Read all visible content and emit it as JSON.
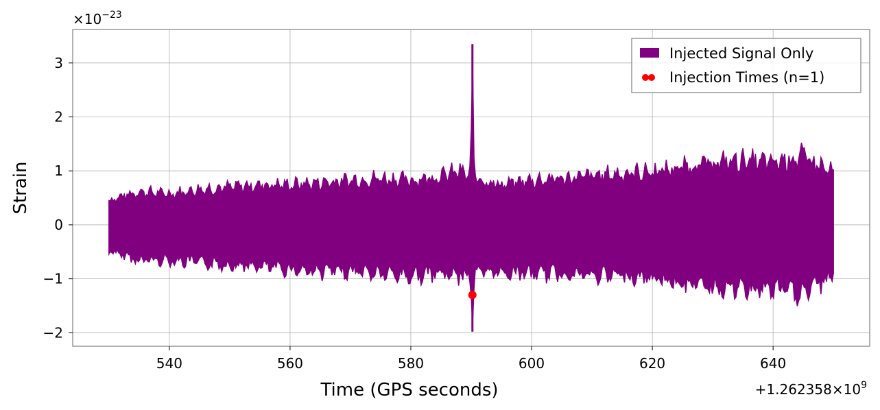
{
  "chart_data": {
    "type": "line",
    "xlabel": "Time (GPS seconds)",
    "ylabel": "Strain",
    "x_offset_label": "+1.262358×10",
    "x_offset_exp": "9",
    "y_scale_label": "×10",
    "y_scale_exp": "−23",
    "xlim": [
      524,
      656
    ],
    "ylim": [
      -2.25,
      3.62
    ],
    "x_ticks": [
      540,
      560,
      580,
      600,
      620,
      640
    ],
    "x_tick_labels": [
      "540",
      "560",
      "580",
      "600",
      "620",
      "640"
    ],
    "y_ticks": [
      -2,
      -1,
      0,
      1,
      2,
      3
    ],
    "y_tick_labels": [
      "−2",
      "−1",
      "0",
      "1",
      "2",
      "3"
    ],
    "grid": true,
    "legend_position": "top-right",
    "series": [
      {
        "name": "Injected Signal Only",
        "color": "#800080",
        "kind": "band",
        "x_range": [
          530,
          650
        ],
        "envelope": [
          {
            "x": 530,
            "upper": 0.55,
            "lower": -0.6
          },
          {
            "x": 535,
            "upper": 0.75,
            "lower": -0.8
          },
          {
            "x": 540,
            "upper": 0.7,
            "lower": -0.8
          },
          {
            "x": 545,
            "upper": 0.8,
            "lower": -0.85
          },
          {
            "x": 550,
            "upper": 0.85,
            "lower": -0.9
          },
          {
            "x": 555,
            "upper": 0.9,
            "lower": -0.95
          },
          {
            "x": 560,
            "upper": 0.9,
            "lower": -1.0
          },
          {
            "x": 565,
            "upper": 0.95,
            "lower": -1.05
          },
          {
            "x": 570,
            "upper": 1.0,
            "lower": -1.05
          },
          {
            "x": 575,
            "upper": 1.05,
            "lower": -1.1
          },
          {
            "x": 580,
            "upper": 1.0,
            "lower": -1.15
          },
          {
            "x": 585,
            "upper": 1.1,
            "lower": -1.1
          },
          {
            "x": 588,
            "upper": 1.2,
            "lower": -1.15
          },
          {
            "x": 592,
            "upper": 1.0,
            "lower": -1.1
          },
          {
            "x": 595,
            "upper": 0.9,
            "lower": -1.05
          },
          {
            "x": 600,
            "upper": 1.0,
            "lower": -1.1
          },
          {
            "x": 605,
            "upper": 1.05,
            "lower": -1.1
          },
          {
            "x": 610,
            "upper": 1.1,
            "lower": -1.15
          },
          {
            "x": 615,
            "upper": 1.15,
            "lower": -1.15
          },
          {
            "x": 620,
            "upper": 1.2,
            "lower": -1.2
          },
          {
            "x": 625,
            "upper": 1.3,
            "lower": -1.3
          },
          {
            "x": 630,
            "upper": 1.4,
            "lower": -1.4
          },
          {
            "x": 635,
            "upper": 1.45,
            "lower": -1.45
          },
          {
            "x": 640,
            "upper": 1.4,
            "lower": -1.45
          },
          {
            "x": 645,
            "upper": 1.55,
            "lower": -1.55
          },
          {
            "x": 650,
            "upper": 1.15,
            "lower": -1.15
          }
        ],
        "spike": {
          "x": 590.2,
          "max": 3.35,
          "min": -1.98
        }
      },
      {
        "name": "Injection Times (n=1)",
        "color": "#ff0000",
        "kind": "scatter",
        "points": [
          {
            "x": 590.2,
            "y": -1.3
          }
        ]
      }
    ]
  }
}
